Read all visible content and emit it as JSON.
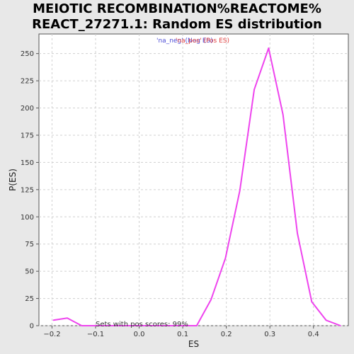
{
  "chart_data": {
    "type": "line",
    "title_lines": [
      "MEIOTIC RECOMBINATION%REACTOME%",
      "REACT_27271.1: Random ES distribution"
    ],
    "xlabel": "ES",
    "ylabel": "P(ES)",
    "xlim": [
      -0.23,
      0.48
    ],
    "ylim": [
      0,
      268
    ],
    "x_ticks": [
      -0.2,
      -0.1,
      0.0,
      0.1,
      0.2,
      0.3,
      0.4
    ],
    "x_tick_labels": [
      "−0.2",
      "−0.1",
      "0.0",
      "0.1",
      "0.2",
      "0.3",
      "0.4"
    ],
    "y_ticks": [
      0,
      25,
      50,
      75,
      100,
      125,
      150,
      175,
      200,
      225,
      250
    ],
    "y_tick_labels": [
      "0",
      "25",
      "50",
      "75",
      "100",
      "125",
      "150",
      "175",
      "200",
      "225",
      "250"
    ],
    "grid": true,
    "legend": {
      "placement": "top-center",
      "entries": [
        {
          "text": "'na_neg' (Neg ES)",
          "color": "#4b4bd6"
        },
        {
          "text": "'na_pos' (Pos ES)",
          "color": "#e04040"
        }
      ]
    },
    "series": [
      {
        "color": "#ee44ee",
        "x": [
          -0.197,
          -0.165,
          -0.132,
          -0.099,
          -0.066,
          -0.033,
          0.0,
          0.033,
          0.066,
          0.099,
          0.132,
          0.165,
          0.198,
          0.231,
          0.264,
          0.297,
          0.33,
          0.363,
          0.396,
          0.429,
          0.462
        ],
        "y": [
          5,
          7,
          0,
          0,
          0,
          0,
          0,
          0,
          0,
          0,
          0,
          24,
          62,
          124,
          217,
          255,
          194,
          85,
          22,
          5,
          0
        ]
      }
    ],
    "annotation": "Sets with pos scores: 99%"
  },
  "colors": {
    "background": "#e8e8e8",
    "plot_background": "#ffffff",
    "grid": "#d0d0d0",
    "axis": "#555555"
  }
}
